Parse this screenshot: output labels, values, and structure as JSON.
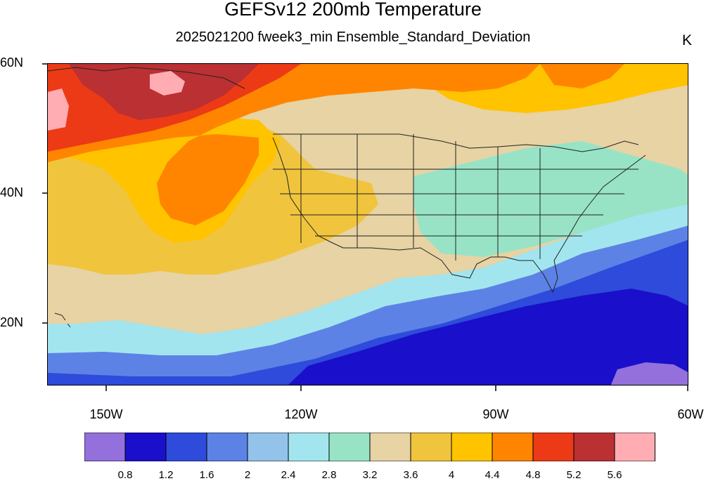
{
  "header": {
    "title": "GEFSv12 200mb Temperature",
    "subtitle": "2025021200 fweek3_min Ensemble_Standard_Deviation",
    "units": "K"
  },
  "axes": {
    "lat_labels": [
      "60N",
      "40N",
      "20N"
    ],
    "lon_labels": [
      "150W",
      "120W",
      "90W",
      "60W"
    ]
  },
  "map": {
    "region": "North Pacific / Contiguous United States",
    "lat_range": [
      10,
      60
    ],
    "lon_range": [
      -159,
      -60
    ],
    "variable": "200mb Temperature ensemble standard deviation",
    "boundaries": [
      "US state lines",
      "coastlines"
    ]
  },
  "colorbar": {
    "levels": [
      "0.8",
      "1.2",
      "1.6",
      "2",
      "2.4",
      "2.8",
      "3.2",
      "3.6",
      "4",
      "4.4",
      "4.8",
      "5.2",
      "5.6"
    ],
    "colors": [
      "#9370DB",
      "#1A0FCA",
      "#2E4BDB",
      "#5C82E6",
      "#93C3EA",
      "#A3E5EE",
      "#98E3C6",
      "#E7D3A3",
      "#F0C43D",
      "#FFC300",
      "#FF8500",
      "#EC3A16",
      "#BA3033",
      "#FFADB2"
    ]
  }
}
